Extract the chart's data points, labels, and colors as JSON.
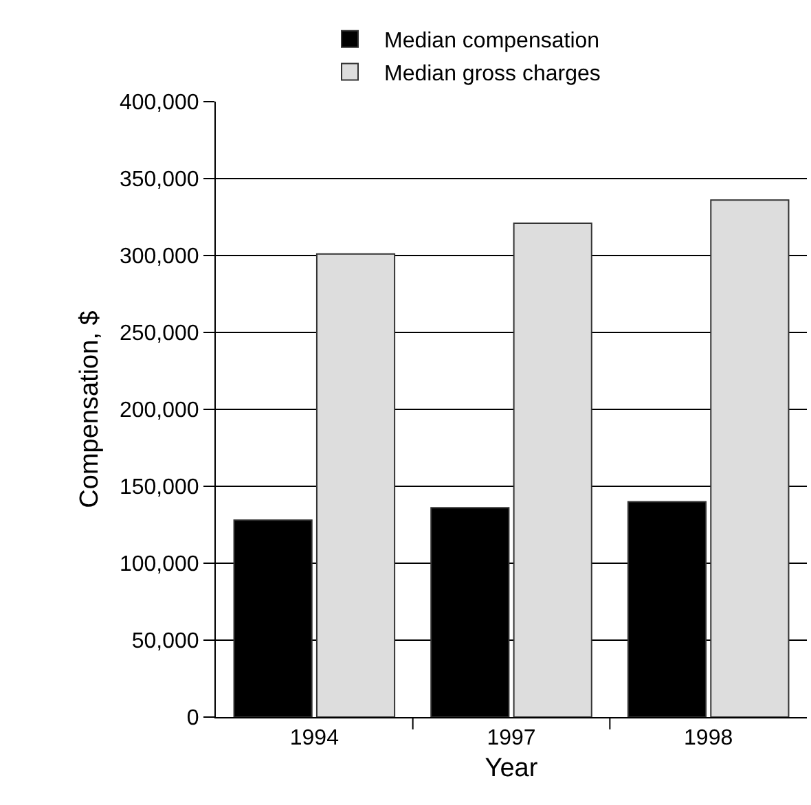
{
  "chart_data": {
    "type": "bar",
    "xlabel": "Year",
    "ylabel": "Compensation, $",
    "categories": [
      "1994",
      "1997",
      "1998"
    ],
    "series": [
      {
        "name": "Median compensation",
        "color": "#000000",
        "values": [
          128000,
          136000,
          140000
        ]
      },
      {
        "name": "Median gross charges",
        "color": "#dddddd",
        "values": [
          301000,
          321000,
          336000
        ]
      }
    ],
    "ylim": [
      0,
      400000
    ],
    "yticks": [
      {
        "value": 0,
        "label": "0"
      },
      {
        "value": 50000,
        "label": "50,000"
      },
      {
        "value": 100000,
        "label": "100,000"
      },
      {
        "value": 150000,
        "label": "150,000"
      },
      {
        "value": 200000,
        "label": "200,000"
      },
      {
        "value": 250000,
        "label": "250,000"
      },
      {
        "value": 300000,
        "label": "300,000"
      },
      {
        "value": 350000,
        "label": "350,000"
      },
      {
        "value": 400000,
        "label": "400,000"
      }
    ],
    "grid": "y",
    "legend": "top"
  }
}
